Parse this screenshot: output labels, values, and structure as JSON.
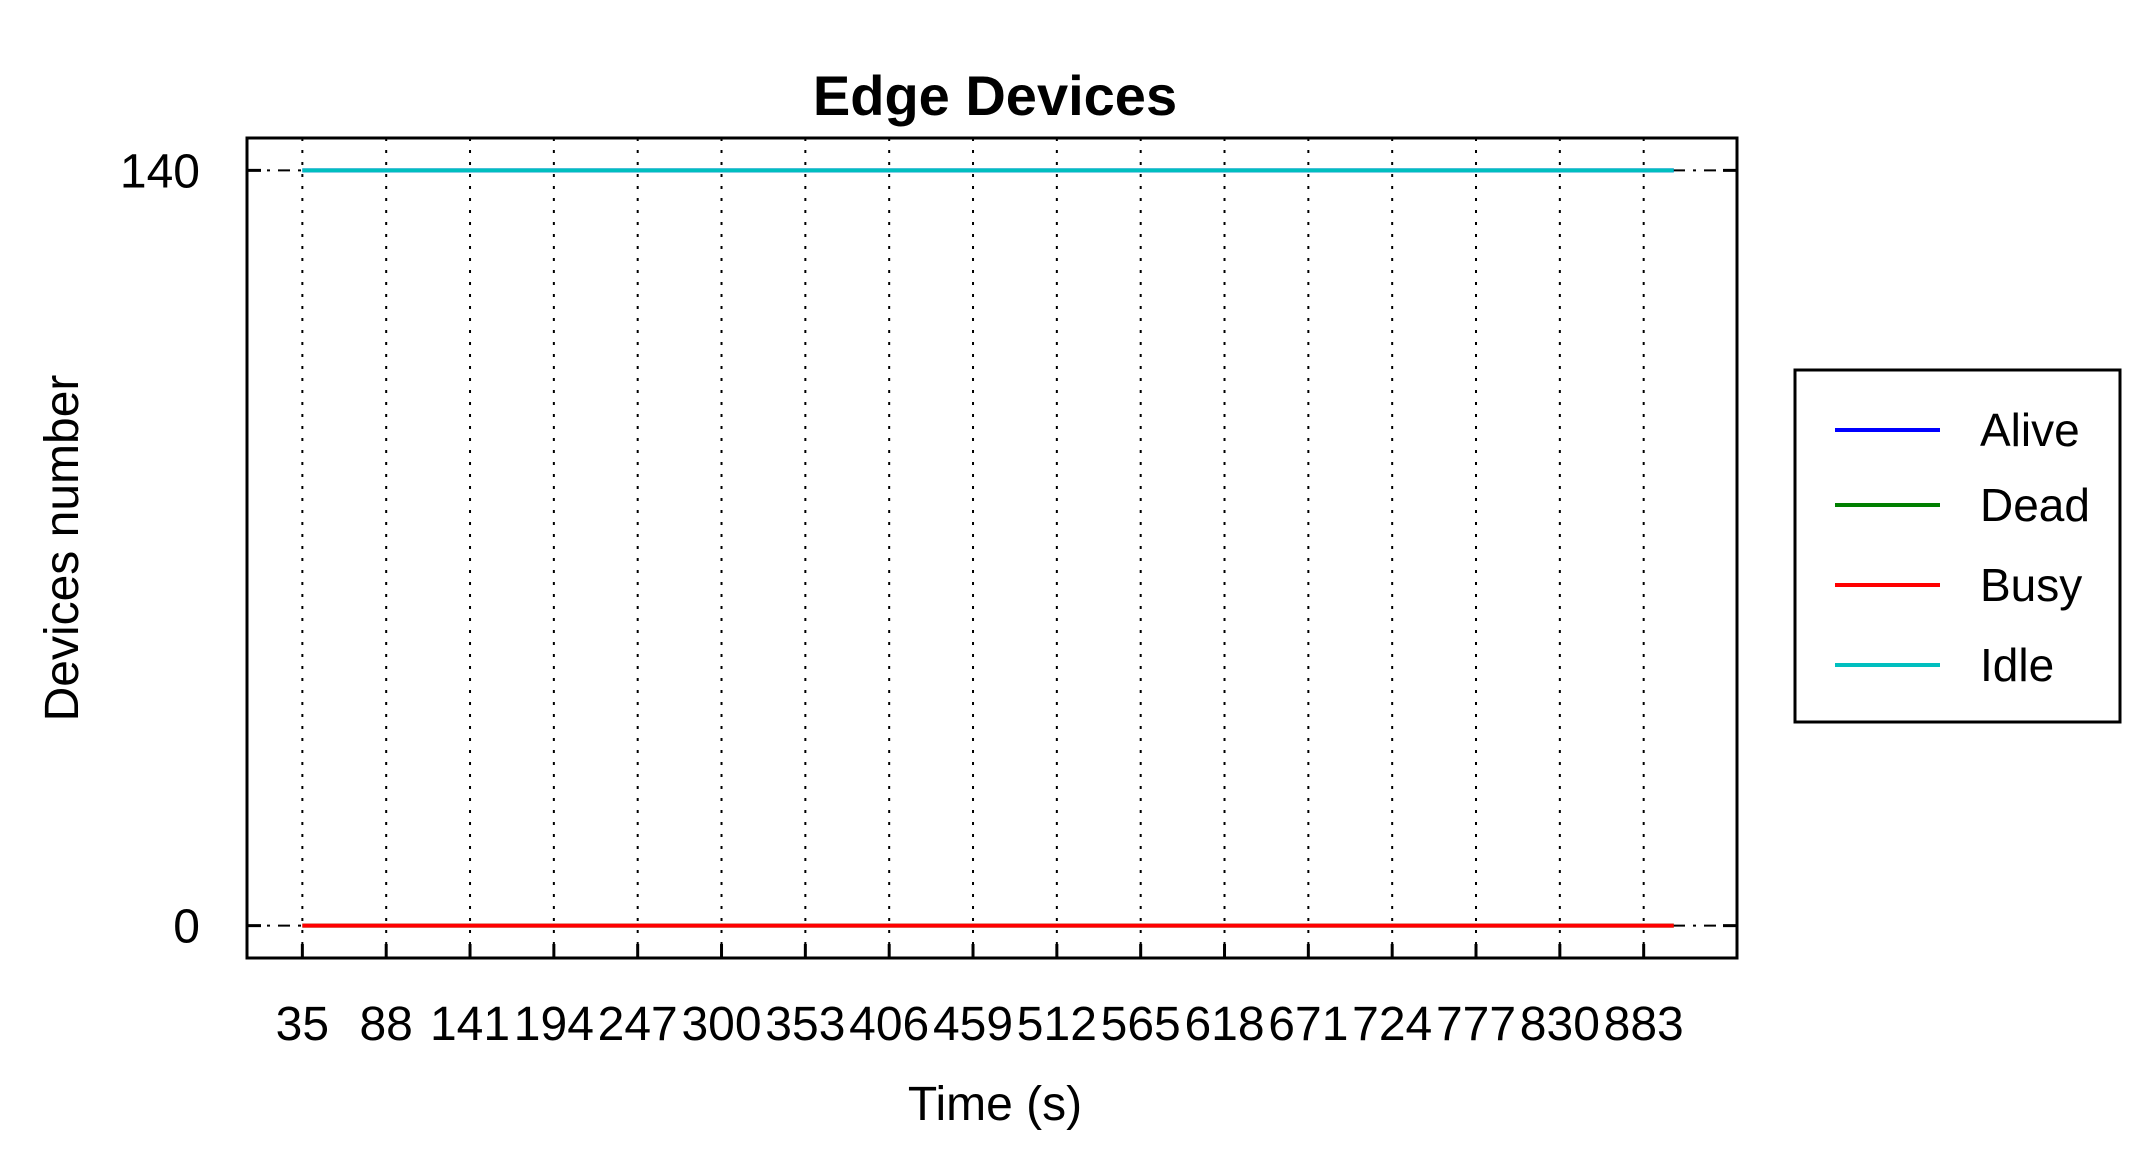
{
  "chart_data": {
    "type": "line",
    "title": "Edge Devices",
    "xlabel": "Time (s)",
    "ylabel": "Devices number",
    "x_ticks": [
      35,
      88,
      141,
      194,
      247,
      300,
      353,
      406,
      459,
      512,
      565,
      618,
      671,
      724,
      777,
      830,
      883
    ],
    "x_range": [
      35,
      902
    ],
    "xlim": [
      0,
      942
    ],
    "y_ticks": [
      0,
      140
    ],
    "ylim": [
      -6,
      146
    ],
    "grid": "x-dotted",
    "legend_position": "right",
    "series": [
      {
        "name": "Alive",
        "color": "#0000ff",
        "value": 140
      },
      {
        "name": "Dead",
        "color": "#007f00",
        "value": 0
      },
      {
        "name": "Busy",
        "color": "#ff0000",
        "value": 0
      },
      {
        "name": "Idle",
        "color": "#00bfbf",
        "value": 140
      }
    ]
  }
}
